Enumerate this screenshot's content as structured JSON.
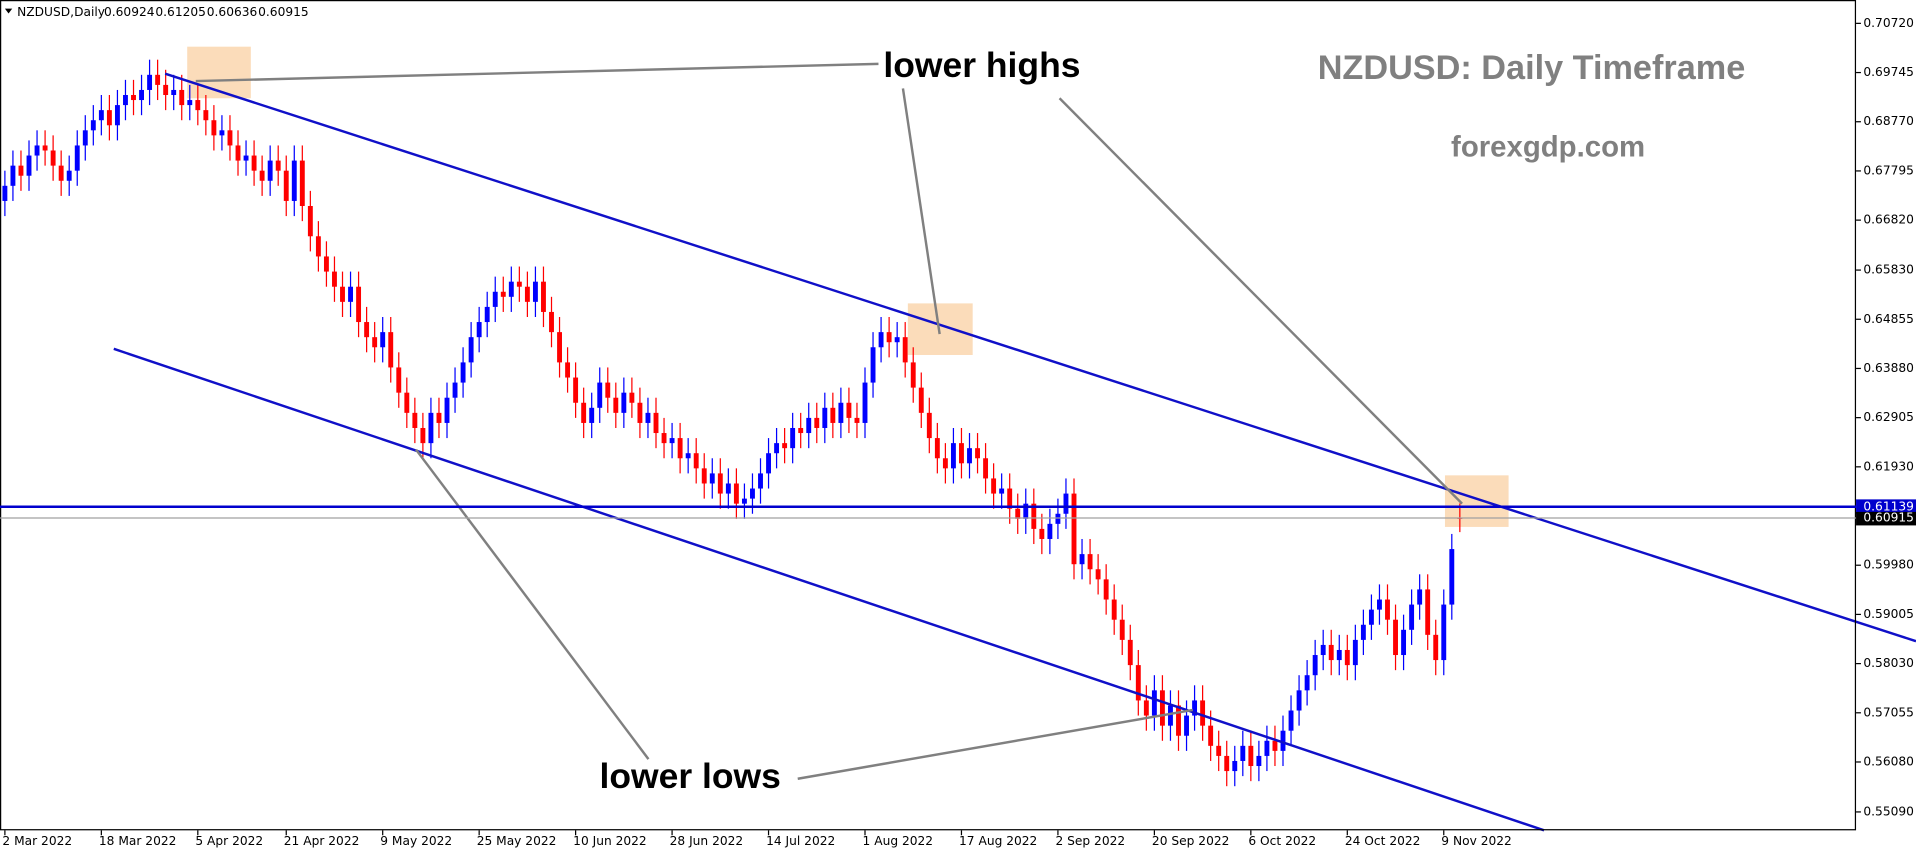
{
  "chart_data": {
    "type": "candlestick",
    "symbol": "NZDUSD,Daily",
    "title": "NZDUSD: Daily Timeframe",
    "subtitle": "forexgdp.com",
    "annotations": [
      "lower highs",
      "lower lows"
    ],
    "up_color": "#0000ff",
    "down_color": "#ff0000",
    "categories": [
      "2 Mar 2022",
      null,
      null,
      null,
      null,
      null,
      null,
      null,
      null,
      null,
      null,
      null,
      "18 Mar 2022",
      null,
      null,
      null,
      null,
      null,
      null,
      null,
      null,
      null,
      null,
      null,
      "5 Apr 2022",
      null,
      null,
      null,
      null,
      null,
      null,
      null,
      null,
      null,
      null,
      "21 Apr 2022",
      null,
      null,
      null,
      null,
      null,
      null,
      null,
      null,
      null,
      null,
      null,
      "9 May 2022",
      null,
      null,
      null,
      null,
      null,
      null,
      null,
      null,
      null,
      null,
      null,
      "25 May 2022",
      null,
      null,
      null,
      null,
      null,
      null,
      null,
      null,
      null,
      null,
      null,
      "10 Jun 2022",
      null,
      null,
      null,
      null,
      null,
      null,
      null,
      null,
      null,
      null,
      null,
      "28 Jun 2022",
      null,
      null,
      null,
      null,
      null,
      null,
      null,
      null,
      null,
      null,
      null,
      "14 Jul 2022",
      null,
      null,
      null,
      null,
      null,
      null,
      null,
      null,
      null,
      null,
      null,
      "1 Aug 2022",
      null,
      null,
      null,
      null,
      null,
      null,
      null,
      null,
      null,
      null,
      null,
      "17 Aug 2022",
      null,
      null,
      null,
      null,
      null,
      null,
      null,
      null,
      null,
      null,
      null,
      "2 Sep 2022",
      null,
      null,
      null,
      null,
      null,
      null,
      null,
      null,
      null,
      null,
      null,
      "20 Sep 2022",
      null,
      null,
      null,
      null,
      null,
      null,
      null,
      null,
      null,
      null,
      null,
      "6 Oct 2022",
      null,
      null,
      null,
      null,
      null,
      null,
      null,
      null,
      null,
      null,
      null,
      "24 Oct 2022",
      null,
      null,
      null,
      null,
      null,
      null,
      null,
      null,
      null,
      null,
      null,
      "9 Nov 2022",
      null,
      null
    ],
    "open": [
      0.672,
      0.675,
      0.679,
      0.677,
      0.681,
      0.683,
      0.682,
      0.679,
      0.676,
      0.678,
      0.683,
      0.686,
      0.688,
      0.69,
      0.687,
      0.691,
      0.693,
      0.692,
      0.694,
      0.697,
      0.695,
      0.693,
      0.694,
      0.691,
      0.692,
      0.69,
      0.688,
      0.685,
      0.686,
      0.683,
      0.68,
      0.681,
      0.678,
      0.676,
      0.68,
      0.678,
      0.672,
      0.68,
      0.671,
      0.665,
      0.661,
      0.658,
      0.655,
      0.652,
      0.655,
      0.648,
      0.645,
      0.643,
      0.646,
      0.639,
      0.634,
      0.63,
      0.627,
      0.624,
      0.63,
      0.628,
      0.633,
      0.636,
      0.64,
      0.645,
      0.648,
      0.651,
      0.654,
      0.653,
      0.656,
      0.655,
      0.652,
      0.656,
      0.65,
      0.646,
      0.64,
      0.637,
      0.632,
      0.628,
      0.631,
      0.636,
      0.633,
      0.63,
      0.634,
      0.632,
      0.628,
      0.63,
      0.626,
      0.624,
      0.625,
      0.621,
      0.622,
      0.619,
      0.616,
      0.618,
      0.614,
      0.616,
      0.612,
      0.613,
      0.615,
      0.618,
      0.622,
      0.624,
      0.623,
      0.627,
      0.626,
      0.629,
      0.627,
      0.631,
      0.628,
      0.632,
      0.629,
      0.628,
      0.636,
      0.643,
      0.646,
      0.644,
      0.645,
      0.64,
      0.635,
      0.63,
      0.625,
      0.621,
      0.619,
      0.624,
      0.62,
      0.623,
      0.621,
      0.617,
      0.614,
      0.615,
      0.611,
      0.609,
      0.612,
      0.607,
      0.605,
      0.608,
      0.61,
      0.614,
      0.6,
      0.602,
      0.599,
      0.597,
      0.593,
      0.589,
      0.585,
      0.58,
      0.573,
      0.57,
      0.575,
      0.568,
      0.572,
      0.566,
      0.57,
      0.573,
      0.568,
      0.564,
      0.562,
      0.559,
      0.561,
      0.564,
      0.56,
      0.562,
      0.565,
      0.563,
      0.567,
      0.571,
      0.575,
      0.578,
      0.582,
      0.584,
      0.581,
      0.583,
      0.58,
      0.585,
      0.588,
      0.591,
      0.593,
      0.589,
      0.582,
      0.587,
      0.592,
      0.595,
      0.586,
      0.581,
      0.592,
      0.60924
    ],
    "high": [
      0.678,
      0.682,
      0.682,
      0.684,
      0.686,
      0.686,
      0.685,
      0.682,
      0.681,
      0.686,
      0.689,
      0.691,
      0.693,
      0.693,
      0.694,
      0.696,
      0.696,
      0.697,
      0.7,
      0.7,
      0.698,
      0.697,
      0.697,
      0.695,
      0.695,
      0.693,
      0.691,
      0.689,
      0.689,
      0.686,
      0.684,
      0.684,
      0.681,
      0.683,
      0.683,
      0.681,
      0.683,
      0.683,
      0.674,
      0.668,
      0.664,
      0.661,
      0.658,
      0.658,
      0.658,
      0.651,
      0.648,
      0.649,
      0.649,
      0.642,
      0.637,
      0.633,
      0.63,
      0.633,
      0.633,
      0.636,
      0.639,
      0.643,
      0.648,
      0.651,
      0.654,
      0.657,
      0.657,
      0.659,
      0.659,
      0.658,
      0.659,
      0.659,
      0.653,
      0.649,
      0.643,
      0.64,
      0.635,
      0.634,
      0.639,
      0.639,
      0.636,
      0.637,
      0.637,
      0.635,
      0.633,
      0.633,
      0.629,
      0.628,
      0.628,
      0.625,
      0.625,
      0.622,
      0.621,
      0.621,
      0.619,
      0.619,
      0.616,
      0.618,
      0.621,
      0.625,
      0.627,
      0.627,
      0.63,
      0.63,
      0.632,
      0.632,
      0.634,
      0.634,
      0.635,
      0.635,
      0.632,
      0.639,
      0.646,
      0.649,
      0.649,
      0.648,
      0.648,
      0.643,
      0.638,
      0.633,
      0.628,
      0.624,
      0.627,
      0.627,
      0.626,
      0.626,
      0.624,
      0.62,
      0.618,
      0.618,
      0.614,
      0.615,
      0.615,
      0.61,
      0.611,
      0.613,
      0.617,
      0.617,
      0.605,
      0.605,
      0.602,
      0.6,
      0.596,
      0.592,
      0.588,
      0.583,
      0.576,
      0.578,
      0.578,
      0.575,
      0.575,
      0.573,
      0.576,
      0.576,
      0.571,
      0.567,
      0.565,
      0.564,
      0.567,
      0.567,
      0.565,
      0.568,
      0.568,
      0.57,
      0.574,
      0.578,
      0.581,
      0.585,
      0.587,
      0.587,
      0.586,
      0.586,
      0.588,
      0.591,
      0.594,
      0.596,
      0.596,
      0.592,
      0.59,
      0.595,
      0.598,
      0.598,
      0.589,
      0.595,
      0.606,
      0.61205
    ],
    "low": [
      0.669,
      0.672,
      0.674,
      0.674,
      0.678,
      0.679,
      0.676,
      0.673,
      0.673,
      0.675,
      0.68,
      0.683,
      0.685,
      0.684,
      0.684,
      0.688,
      0.689,
      0.689,
      0.691,
      0.692,
      0.69,
      0.69,
      0.688,
      0.688,
      0.687,
      0.685,
      0.682,
      0.682,
      0.68,
      0.677,
      0.677,
      0.675,
      0.673,
      0.673,
      0.675,
      0.669,
      0.669,
      0.668,
      0.662,
      0.658,
      0.655,
      0.652,
      0.649,
      0.649,
      0.645,
      0.642,
      0.64,
      0.64,
      0.636,
      0.631,
      0.627,
      0.624,
      0.621,
      0.621,
      0.625,
      0.625,
      0.63,
      0.633,
      0.637,
      0.642,
      0.645,
      0.648,
      0.65,
      0.65,
      0.652,
      0.649,
      0.649,
      0.647,
      0.643,
      0.637,
      0.634,
      0.629,
      0.625,
      0.625,
      0.628,
      0.63,
      0.627,
      0.627,
      0.629,
      0.625,
      0.625,
      0.623,
      0.621,
      0.621,
      0.618,
      0.618,
      0.616,
      0.613,
      0.613,
      0.611,
      0.611,
      0.609,
      0.609,
      0.61,
      0.612,
      0.615,
      0.619,
      0.62,
      0.62,
      0.623,
      0.623,
      0.624,
      0.624,
      0.625,
      0.625,
      0.626,
      0.625,
      0.625,
      0.633,
      0.64,
      0.641,
      0.641,
      0.637,
      0.632,
      0.627,
      0.622,
      0.618,
      0.616,
      0.616,
      0.617,
      0.617,
      0.618,
      0.614,
      0.611,
      0.611,
      0.608,
      0.606,
      0.606,
      0.604,
      0.602,
      0.602,
      0.605,
      0.607,
      0.597,
      0.597,
      0.596,
      0.594,
      0.59,
      0.586,
      0.582,
      0.577,
      0.57,
      0.567,
      0.567,
      0.565,
      0.565,
      0.563,
      0.563,
      0.567,
      0.565,
      0.561,
      0.559,
      0.556,
      0.556,
      0.558,
      0.557,
      0.557,
      0.559,
      0.56,
      0.56,
      0.564,
      0.568,
      0.572,
      0.575,
      0.579,
      0.578,
      0.578,
      0.577,
      0.577,
      0.582,
      0.585,
      0.588,
      0.586,
      0.579,
      0.579,
      0.584,
      0.589,
      0.583,
      0.578,
      0.578,
      0.589,
      0.60636
    ],
    "close": [
      0.675,
      0.679,
      0.677,
      0.681,
      0.683,
      0.682,
      0.679,
      0.676,
      0.678,
      0.683,
      0.686,
      0.688,
      0.69,
      0.687,
      0.691,
      0.693,
      0.692,
      0.694,
      0.697,
      0.695,
      0.693,
      0.694,
      0.691,
      0.692,
      0.69,
      0.688,
      0.685,
      0.686,
      0.683,
      0.68,
      0.681,
      0.678,
      0.676,
      0.68,
      0.678,
      0.672,
      0.68,
      0.671,
      0.665,
      0.661,
      0.658,
      0.655,
      0.652,
      0.655,
      0.648,
      0.645,
      0.643,
      0.646,
      0.639,
      0.634,
      0.63,
      0.627,
      0.624,
      0.63,
      0.628,
      0.633,
      0.636,
      0.64,
      0.645,
      0.648,
      0.651,
      0.654,
      0.653,
      0.656,
      0.655,
      0.652,
      0.656,
      0.65,
      0.646,
      0.64,
      0.637,
      0.632,
      0.628,
      0.631,
      0.636,
      0.633,
      0.63,
      0.634,
      0.632,
      0.628,
      0.63,
      0.626,
      0.624,
      0.625,
      0.621,
      0.622,
      0.619,
      0.616,
      0.618,
      0.614,
      0.616,
      0.612,
      0.613,
      0.615,
      0.618,
      0.622,
      0.624,
      0.623,
      0.627,
      0.626,
      0.629,
      0.627,
      0.631,
      0.628,
      0.632,
      0.629,
      0.628,
      0.636,
      0.643,
      0.646,
      0.644,
      0.645,
      0.64,
      0.635,
      0.63,
      0.625,
      0.621,
      0.619,
      0.624,
      0.62,
      0.623,
      0.621,
      0.617,
      0.614,
      0.615,
      0.611,
      0.609,
      0.612,
      0.607,
      0.605,
      0.608,
      0.61,
      0.614,
      0.6,
      0.602,
      0.599,
      0.597,
      0.593,
      0.589,
      0.585,
      0.58,
      0.573,
      0.57,
      0.575,
      0.568,
      0.572,
      0.566,
      0.57,
      0.573,
      0.568,
      0.564,
      0.562,
      0.559,
      0.561,
      0.564,
      0.56,
      0.562,
      0.565,
      0.563,
      0.567,
      0.571,
      0.575,
      0.578,
      0.582,
      0.584,
      0.581,
      0.583,
      0.58,
      0.585,
      0.588,
      0.591,
      0.593,
      0.589,
      0.582,
      0.587,
      0.592,
      0.595,
      0.586,
      0.581,
      0.592,
      0.603,
      0.60915
    ],
    "ylim": [
      0.54725,
      0.71183
    ],
    "yticks": [
      {
        "value": 0.7072,
        "label": "0.70720"
      },
      0.69745,
      {
        "value": 0.6877,
        "label": "0.68770"
      },
      0.67795,
      {
        "value": 0.6682,
        "label": "0.66820"
      },
      {
        "value": 0.6583,
        "label": "0.65830"
      },
      0.64855,
      {
        "value": 0.6388,
        "label": "0.63880"
      },
      0.62905,
      {
        "value": 0.6193,
        "label": "0.61930"
      },
      {
        "value": 0.5998,
        "label": "0.59980"
      },
      0.59005,
      {
        "value": 0.5803,
        "label": "0.58030"
      },
      0.57055,
      {
        "value": 0.5608,
        "label": "0.56080"
      },
      {
        "value": 0.5509,
        "label": "0.55090"
      }
    ],
    "hline": {
      "value": 0.61139,
      "color": "#0000cd"
    },
    "grid": false
  }
}
